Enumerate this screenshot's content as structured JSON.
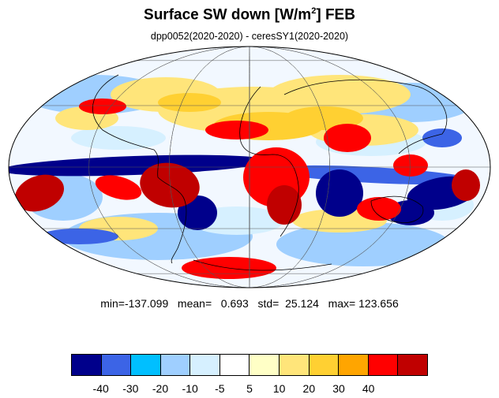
{
  "title": {
    "main": "Surface SW down [W/m",
    "superscript": "2",
    "suffix": "]  FEB"
  },
  "subtitle": "dpp0052(2020-2020) - ceresSY1(2020-2020)",
  "stats": {
    "line": "min=-137.099   mean=   0.693   std=  25.124   max= 123.656",
    "min": -137.099,
    "mean": 0.693,
    "std": 25.124,
    "max": 123.656
  },
  "projection": "mollweide",
  "colorbar": {
    "colors": [
      "#00008b",
      "#3c64e6",
      "#00bfff",
      "#9fcfff",
      "#d6f0ff",
      "#ffffff",
      "#ffffc6",
      "#ffe57a",
      "#ffd032",
      "#ffa500",
      "#ff0000",
      "#c00000"
    ],
    "ticks": [
      "-40",
      "-30",
      "-20",
      "-10",
      "-5",
      "5",
      "10",
      "20",
      "30",
      "40"
    ]
  }
}
